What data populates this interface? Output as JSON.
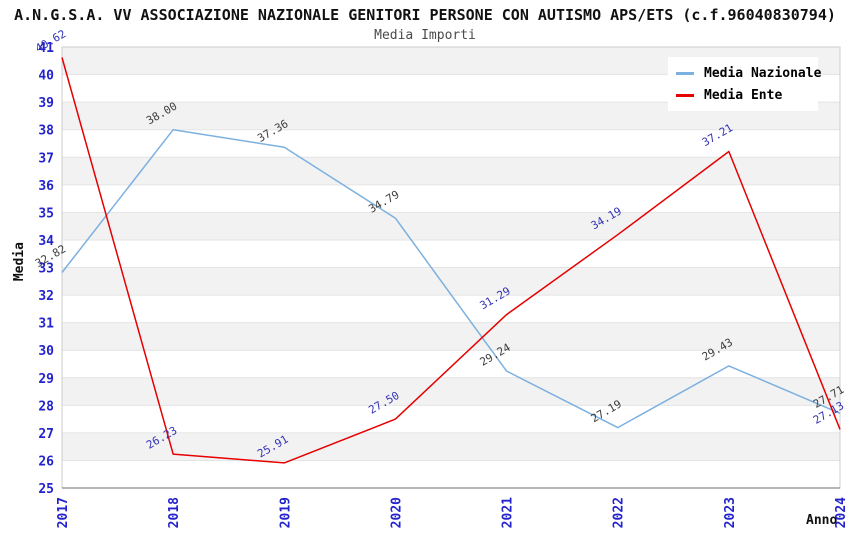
{
  "chart_data": {
    "type": "line",
    "title": "A.N.G.S.A. VV ASSOCIAZIONE NAZIONALE GENITORI PERSONE CON AUTISMO APS/ETS (c.f.96040830794)",
    "subtitle": "Media Importi",
    "xlabel": "Anno",
    "ylabel": "Media",
    "ylim": [
      25,
      41
    ],
    "y_tick_step": 1,
    "x": [
      2017,
      2018,
      2019,
      2020,
      2021,
      2022,
      2023,
      2024
    ],
    "series": [
      {
        "name": "Media Nazionale",
        "color": "#7cb0e0",
        "label_color": "#3d3d3d",
        "values": [
          32.82,
          38.0,
          37.36,
          34.79,
          29.24,
          27.19,
          29.43,
          27.71
        ]
      },
      {
        "name": "Media Ente",
        "color": "#e60000",
        "label_color": "#3434b8",
        "values": [
          40.62,
          26.23,
          25.91,
          27.5,
          31.29,
          34.19,
          37.21,
          27.13
        ]
      }
    ],
    "point_label_format": "two-decimals",
    "legend_position": "top-right",
    "grid": "horizontal-lines-with-alternating-bands",
    "band_color": "#f2f2f2",
    "gridline_color": "#e4e4e4",
    "plot_border_color": "#cccccc",
    "axis_line_color": "#8a8a8a",
    "tick_label_color": "#2323cd"
  }
}
